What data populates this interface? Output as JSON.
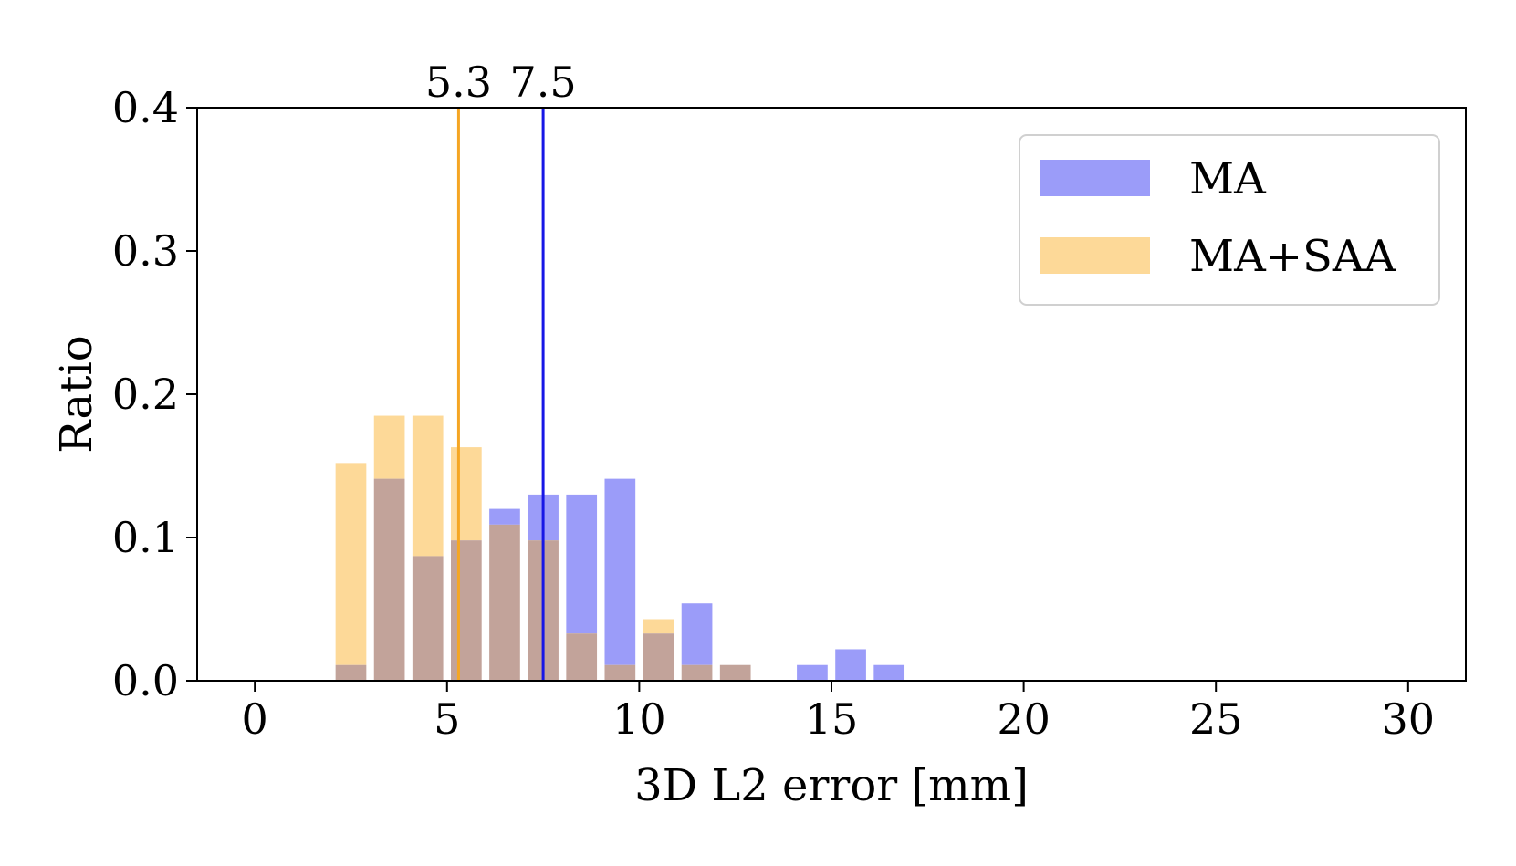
{
  "chart_data": {
    "type": "bar",
    "xlabel": "3D L2 error [mm]",
    "ylabel": "Ratio",
    "xlim": [
      -1.5,
      31.5
    ],
    "ylim": [
      0,
      0.4
    ],
    "xticks": [
      0,
      5,
      10,
      15,
      20,
      25,
      30
    ],
    "xtick_labels": [
      "0",
      "5",
      "10",
      "15",
      "20",
      "25",
      "30"
    ],
    "yticks": [
      0.0,
      0.1,
      0.2,
      0.3,
      0.4
    ],
    "ytick_labels": [
      "0.0",
      "0.1",
      "0.2",
      "0.3",
      "0.4"
    ],
    "grid": false,
    "legend_position": "top-right",
    "bin_width": 0.8,
    "x": [
      2.5,
      3.5,
      4.5,
      5.5,
      6.5,
      7.5,
      8.5,
      9.5,
      10.5,
      11.5,
      12.5,
      14.5,
      15.5,
      16.5
    ],
    "series": [
      {
        "name": "MA",
        "color": "#9b9cf9",
        "values": [
          0.011,
          0.141,
          0.087,
          0.098,
          0.12,
          0.13,
          0.13,
          0.141,
          0.033,
          0.054,
          0.011,
          0.011,
          0.022,
          0.011
        ]
      },
      {
        "name": "MA+SAA",
        "color": "#fdd998",
        "values": [
          0.152,
          0.185,
          0.185,
          0.163,
          0.109,
          0.098,
          0.033,
          0.011,
          0.043,
          0.011,
          0.011,
          0.0,
          0.0,
          0.0
        ]
      }
    ],
    "overlap_color": "#c2a39a",
    "mean_lines": [
      {
        "series": "MA+SAA",
        "x": 5.3,
        "label": "5.3",
        "color": "#f5a623"
      },
      {
        "series": "MA",
        "x": 7.5,
        "label": "7.5",
        "color": "#1717e6"
      }
    ]
  }
}
